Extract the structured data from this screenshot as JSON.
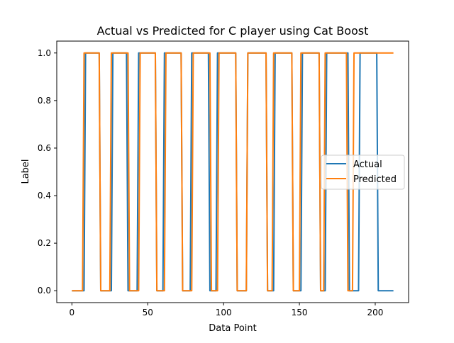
{
  "chart_data": {
    "type": "line",
    "title": "Actual vs Predicted for C player using Cat Boost",
    "xlabel": "Data Point",
    "ylabel": "Label",
    "xlim": [
      -10,
      222
    ],
    "ylim": [
      -0.05,
      1.05
    ],
    "xticks": [
      0,
      50,
      100,
      150,
      200
    ],
    "xtick_labels": [
      "0",
      "50",
      "100",
      "150",
      "200"
    ],
    "yticks": [
      0.0,
      0.2,
      0.4,
      0.6,
      0.8,
      1.0
    ],
    "ytick_labels": [
      "0.0",
      "0.2",
      "0.4",
      "0.6",
      "0.8",
      "1.0"
    ],
    "grid": false,
    "legend_position": "center-right",
    "series": [
      {
        "name": "Actual",
        "color": "#1f77b4",
        "x": [
          0,
          8,
          9,
          18,
          19,
          26,
          27,
          36,
          37,
          43,
          44,
          55,
          56,
          60,
          61,
          72,
          73,
          78,
          79,
          90,
          91,
          95,
          96,
          108,
          109,
          115,
          116,
          128,
          129,
          133,
          134,
          145,
          146,
          151,
          152,
          163,
          164,
          167,
          168,
          182,
          183,
          189,
          190,
          201,
          202,
          212
        ],
        "values": [
          0,
          0,
          1,
          1,
          0,
          0,
          1,
          1,
          0,
          0,
          1,
          1,
          0,
          0,
          1,
          1,
          0,
          0,
          1,
          1,
          0,
          0,
          1,
          1,
          0,
          0,
          1,
          1,
          0,
          0,
          1,
          1,
          0,
          0,
          1,
          1,
          0,
          0,
          1,
          1,
          0,
          0,
          1,
          1,
          0,
          0
        ]
      },
      {
        "name": "Predicted",
        "color": "#ff7f0e",
        "x": [
          0,
          7,
          8,
          18,
          19,
          25,
          26,
          37,
          38,
          44,
          45,
          55,
          56,
          61,
          62,
          72,
          73,
          79,
          80,
          91,
          92,
          96,
          97,
          108,
          109,
          115,
          116,
          128,
          129,
          132,
          133,
          145,
          146,
          150,
          151,
          163,
          164,
          166,
          167,
          181,
          182,
          185,
          186,
          212
        ],
        "values": [
          0,
          0,
          1,
          1,
          0,
          0,
          1,
          1,
          0,
          0,
          1,
          1,
          0,
          0,
          1,
          1,
          0,
          0,
          1,
          1,
          0,
          0,
          1,
          1,
          0,
          0,
          1,
          1,
          0,
          0,
          1,
          1,
          0,
          0,
          1,
          1,
          0,
          0,
          1,
          1,
          0,
          0,
          1,
          1
        ]
      }
    ]
  }
}
